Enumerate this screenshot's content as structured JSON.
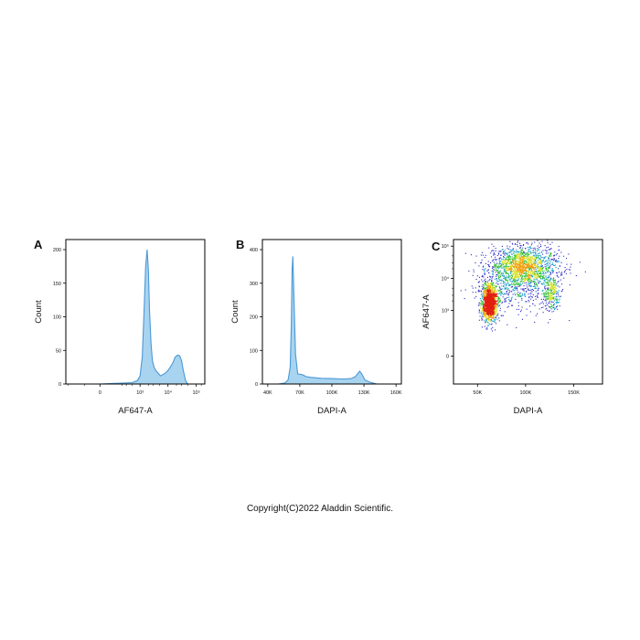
{
  "copyright": "Copyright(C)2022 Aladdin Scientific.",
  "colors": {
    "fill": "#a9d4f0",
    "line": "#4a98d6",
    "axis": "#000000",
    "dot": "#2a2ac8"
  },
  "chart_data": [
    {
      "panel": "A",
      "type": "area",
      "xlabel": "AF647-A",
      "ylabel": "Count",
      "xscale": "biexponential",
      "xlim": [
        -600,
        200000
      ],
      "ylim": [
        0,
        215
      ],
      "xticks": [
        "0",
        "10³",
        "10⁴",
        "10⁵"
      ],
      "xtick_values": [
        0,
        1000,
        10000,
        100000
      ],
      "yticks": [
        0,
        50,
        100,
        150,
        200
      ],
      "x": [
        -150,
        0,
        500,
        800,
        1000,
        1200,
        1400,
        1600,
        1800,
        2000,
        2200,
        2500,
        2800,
        3200,
        3700,
        4500,
        5500,
        6500,
        8000,
        10000,
        12000,
        15000,
        18000,
        22000,
        26000,
        30000,
        35000,
        42000,
        50000
      ],
      "y": [
        0,
        0,
        2,
        5,
        12,
        40,
        110,
        175,
        200,
        170,
        110,
        60,
        35,
        25,
        20,
        16,
        12,
        14,
        16,
        20,
        25,
        32,
        40,
        43,
        42,
        35,
        20,
        5,
        0
      ]
    },
    {
      "panel": "B",
      "type": "area",
      "xlabel": "DAPI-A",
      "ylabel": "Count",
      "xlim": [
        35000,
        165000
      ],
      "ylim": [
        0,
        430
      ],
      "xticks": [
        "40K",
        "70K",
        "100K",
        "130K",
        "160K"
      ],
      "xtick_values": [
        40000,
        70000,
        100000,
        130000,
        160000
      ],
      "yticks": [
        0,
        100,
        200,
        300,
        400
      ],
      "x": [
        50000,
        56000,
        59000,
        61000,
        62000,
        62800,
        63500,
        64500,
        66000,
        68000,
        72000,
        76000,
        80000,
        90000,
        100000,
        110000,
        118000,
        122000,
        126000,
        128000,
        131000,
        136000,
        142000
      ],
      "y": [
        0,
        3,
        12,
        50,
        170,
        340,
        380,
        260,
        90,
        30,
        28,
        22,
        20,
        17,
        16,
        15,
        16,
        22,
        38,
        30,
        12,
        5,
        0
      ]
    },
    {
      "panel": "C",
      "type": "scatter",
      "xlabel": "DAPI-A",
      "ylabel": "AF647-A",
      "xlim": [
        25000,
        180000
      ],
      "yscale": "biexponential",
      "xticks": [
        "50K",
        "100K",
        "150K"
      ],
      "xtick_values": [
        50000,
        100000,
        150000
      ],
      "yticks": [
        "0",
        "10³",
        "10⁴",
        "10⁵"
      ],
      "ytick_values": [
        0,
        1000,
        10000,
        100000
      ],
      "populations": [
        {
          "name": "",
          "center": [
            62000,
            1800
          ],
          "spread": [
            4000,
            0.28
          ],
          "count": 1400
        },
        {
          "name": "",
          "center": [
            98000,
            25000
          ],
          "spread": [
            18000,
            0.3
          ],
          "count": 1500
        },
        {
          "name": "",
          "center": [
            126000,
            3500
          ],
          "spread": [
            4000,
            0.25
          ],
          "count": 260
        },
        {
          "name": "",
          "center": [
            85000,
            6000
          ],
          "spread": [
            20000,
            0.45
          ],
          "count": 500
        }
      ]
    }
  ]
}
